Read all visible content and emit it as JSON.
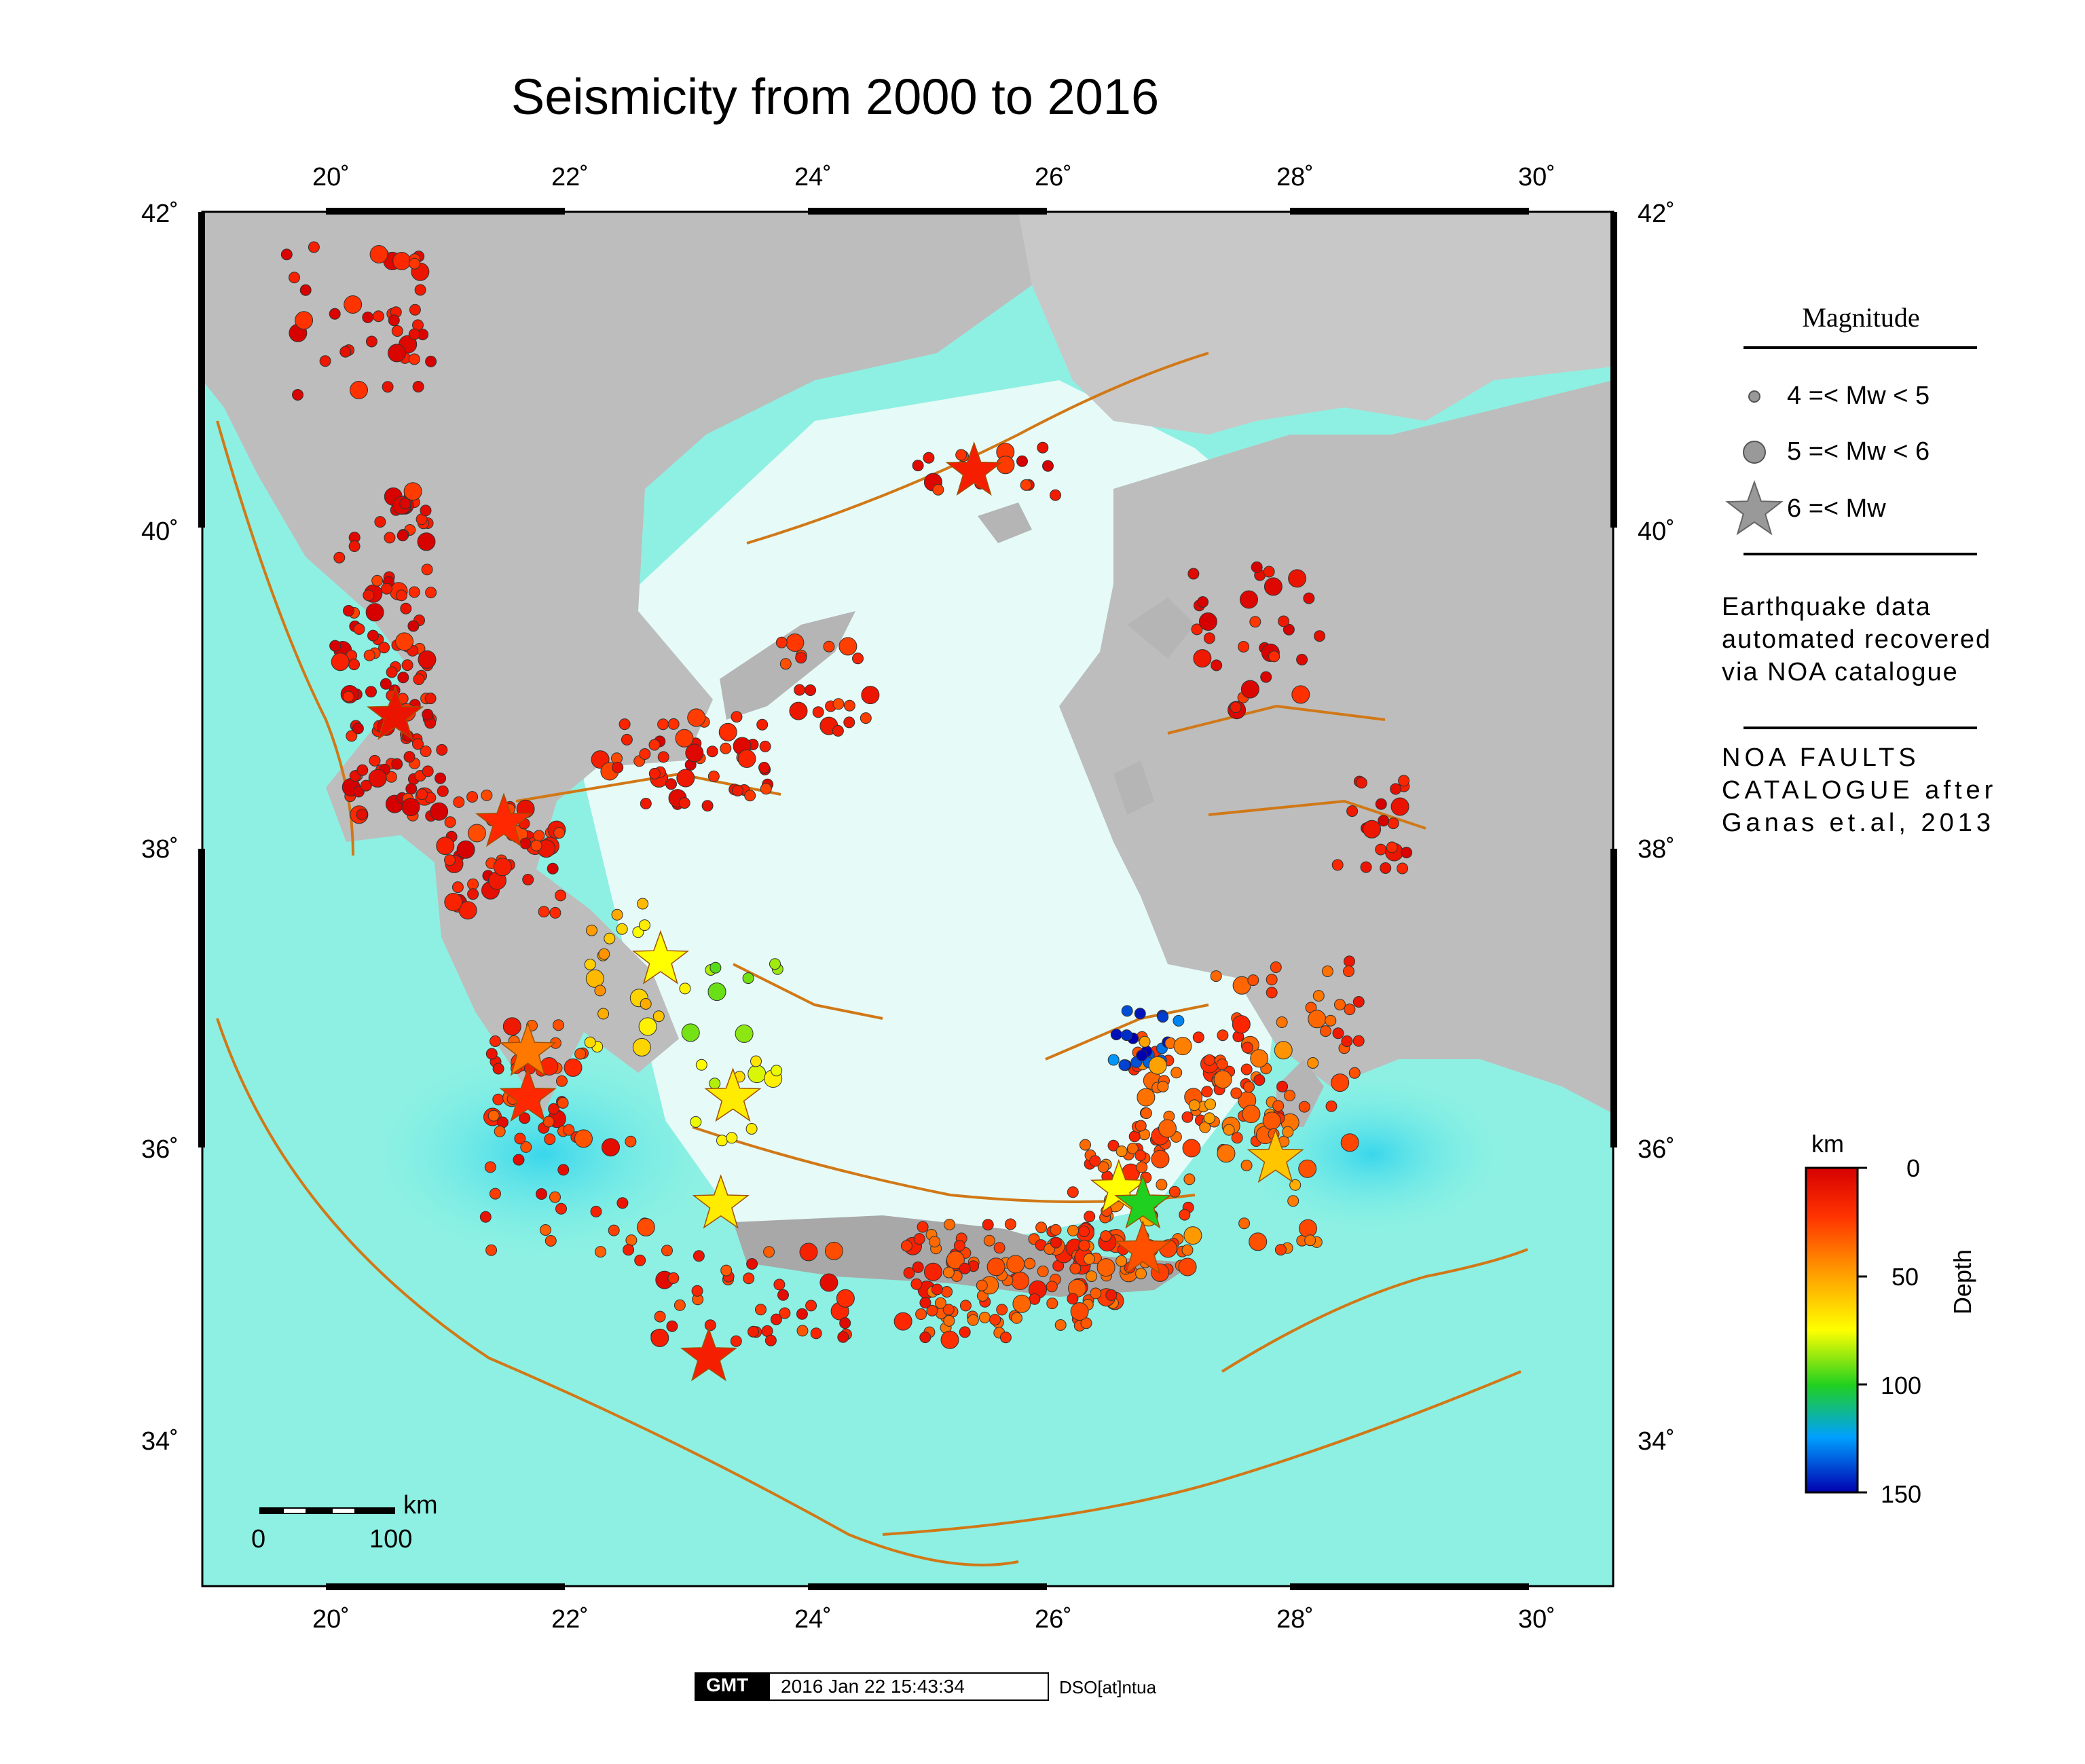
{
  "title": "Seismicity from 2000 to 2016",
  "axes": {
    "lon_labels": [
      "20˚",
      "22˚",
      "24˚",
      "26˚",
      "28˚",
      "30˚"
    ],
    "lat_labels": [
      "42˚",
      "40˚",
      "38˚",
      "36˚",
      "34˚"
    ],
    "lon_range": [
      19.0,
      30.7
    ],
    "lat_range": [
      33.0,
      42.0
    ]
  },
  "legend": {
    "title": "Magnitude",
    "items": [
      {
        "symbol": "small-circle",
        "label": "4 =< Mw < 5"
      },
      {
        "symbol": "large-circle",
        "label": "5 =< Mw < 6"
      },
      {
        "symbol": "star",
        "label": "6 =< Mw"
      }
    ]
  },
  "notes": {
    "data_source": "Earthquake data\nautomated recovered\nvia NOA catalogue",
    "faults_source": "NOA FAULTS\nCATALOGUE after\nGanas et.al, 2013"
  },
  "colorbar": {
    "unit": "km",
    "title": "Depth",
    "ticks": [
      "0",
      "50",
      "100",
      "150"
    ]
  },
  "scalebar": {
    "unit": "km",
    "labels": [
      "0",
      "100"
    ]
  },
  "footer": {
    "logo": "GMT",
    "timestamp": "2016 Jan 22 15:43:34",
    "credit": "DSO[at]ntua"
  },
  "colors": {
    "land": "#bdbdbd",
    "sea_shallow": "#e6fbf8",
    "sea_deep": "#7ff2e6",
    "faults": "#d17817",
    "shallow_quake": "#e01f10"
  },
  "big_events": [
    {
      "lon": 25.4,
      "lat": 40.3,
      "depth": 15
    },
    {
      "lon": 20.6,
      "lat": 38.7,
      "depth": 10
    },
    {
      "lon": 21.5,
      "lat": 38.0,
      "depth": 20
    },
    {
      "lon": 22.8,
      "lat": 37.1,
      "depth": 75
    },
    {
      "lon": 21.7,
      "lat": 36.5,
      "depth": 40
    },
    {
      "lon": 21.7,
      "lat": 36.2,
      "depth": 20
    },
    {
      "lon": 23.4,
      "lat": 36.2,
      "depth": 70
    },
    {
      "lon": 23.3,
      "lat": 35.5,
      "depth": 70
    },
    {
      "lon": 23.2,
      "lat": 34.5,
      "depth": 15
    },
    {
      "lon": 26.6,
      "lat": 35.6,
      "depth": 75
    },
    {
      "lon": 26.8,
      "lat": 35.5,
      "depth": 100
    },
    {
      "lon": 26.8,
      "lat": 35.2,
      "depth": 30
    },
    {
      "lon": 27.9,
      "lat": 35.8,
      "depth": 60
    }
  ]
}
